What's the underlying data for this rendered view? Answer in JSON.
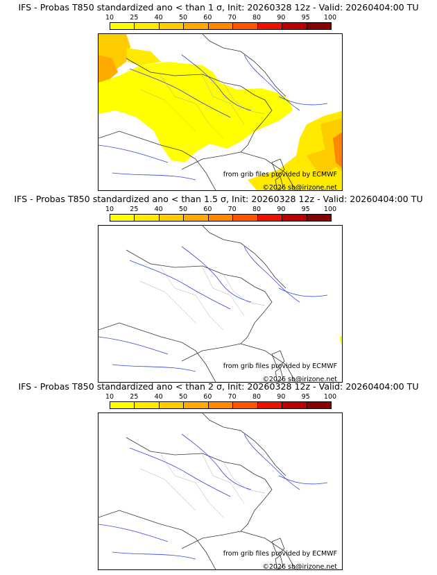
{
  "colorbar": {
    "labels": [
      "10",
      "25",
      "40",
      "50",
      "60",
      "70",
      "80",
      "90",
      "95",
      "100"
    ],
    "colors": [
      "#ffff00",
      "#ffea00",
      "#ffcc00",
      "#ffaa00",
      "#ff8800",
      "#ff5500",
      "#ee1100",
      "#bb0000",
      "#880000"
    ]
  },
  "source_credit": "from grib files provided by ECMWF",
  "copyright": "©2026 sb@irizone.net",
  "panels": [
    {
      "title": "IFS - Probas T850  standardized ano < than 1 σ, Init: 20260328 12z - Valid: 20260404:00 TU",
      "threshold_sigma": 1,
      "coverage": "high"
    },
    {
      "title": "IFS - Probas T850  standardized ano < than 1.5 σ, Init: 20260328 12z - Valid: 20260404:00 TU",
      "threshold_sigma": 1.5,
      "coverage": "minimal"
    },
    {
      "title": "IFS - Probas T850  standardized ano < than 2 σ, Init: 20260328 12z - Valid: 20260404:00 TU",
      "threshold_sigma": 2,
      "coverage": "none"
    }
  ]
}
